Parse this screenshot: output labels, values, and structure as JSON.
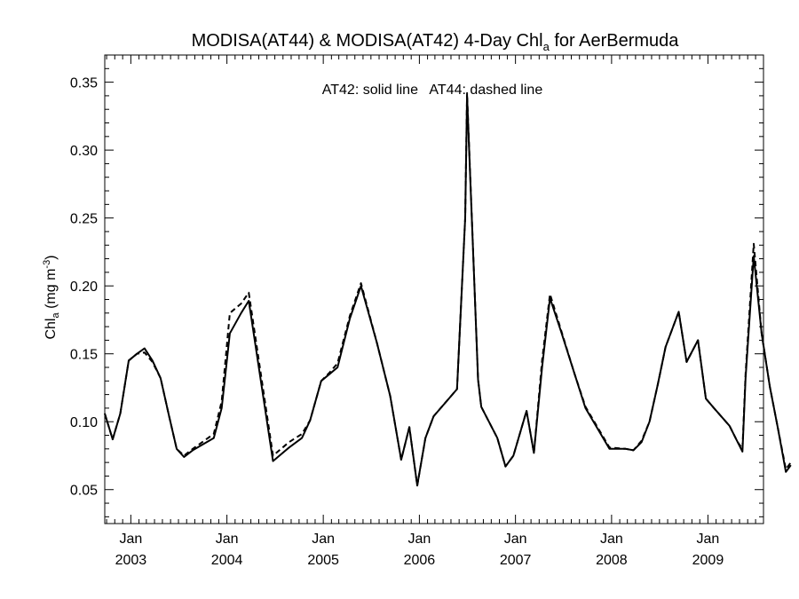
{
  "chart_data": {
    "type": "line",
    "title": "MODISA(AT44) & MODISA(AT42) 4-Day Chl",
    "title_subscript": "a",
    "title_suffix": " for AerBermuda",
    "ylabel": "Chl",
    "ylabel_subscript": "a",
    "ylabel_unit": " (mg m",
    "ylabel_unit_exponent": "-3",
    "ylabel_unit_close": ")",
    "xlabel": "",
    "annotation": "AT42: solid line   AT44: dashed line",
    "ylim": [
      0.025,
      0.37
    ],
    "xlim": [
      "2002-09-24",
      "2009-07-31"
    ],
    "grid": false,
    "y_ticks": [
      0.05,
      0.1,
      0.15,
      0.2,
      0.25,
      0.3,
      0.35
    ],
    "y_tick_labels": [
      "0.05",
      "0.10",
      "0.15",
      "0.20",
      "0.25",
      "0.30",
      "0.35"
    ],
    "x_ticks": [
      {
        "date": "2003-01-01",
        "month": "Jan",
        "year": "2003"
      },
      {
        "date": "2004-01-01",
        "month": "Jan",
        "year": "2004"
      },
      {
        "date": "2005-01-01",
        "month": "Jan",
        "year": "2005"
      },
      {
        "date": "2006-01-01",
        "month": "Jan",
        "year": "2006"
      },
      {
        "date": "2007-01-01",
        "month": "Jan",
        "year": "2007"
      },
      {
        "date": "2008-01-01",
        "month": "Jan",
        "year": "2008"
      },
      {
        "date": "2009-01-01",
        "month": "Jan",
        "year": "2009"
      }
    ],
    "series": [
      {
        "name": "AT42",
        "style": "solid",
        "color": "#000000",
        "points": [
          [
            "2002-09-24",
            0.106
          ],
          [
            "2002-10-24",
            0.087
          ],
          [
            "2002-11-22",
            0.106
          ],
          [
            "2002-12-24",
            0.145
          ],
          [
            "2003-01-24",
            0.15
          ],
          [
            "2003-02-22",
            0.154
          ],
          [
            "2003-03-24",
            0.145
          ],
          [
            "2003-04-24",
            0.132
          ],
          [
            "2003-05-24",
            0.106
          ],
          [
            "2003-06-24",
            0.08
          ],
          [
            "2003-07-22",
            0.074
          ],
          [
            "2003-08-24",
            0.079
          ],
          [
            "2003-11-12",
            0.088
          ],
          [
            "2003-12-12",
            0.11
          ],
          [
            "2004-01-12",
            0.165
          ],
          [
            "2004-02-24",
            0.18
          ],
          [
            "2004-03-24",
            0.189
          ],
          [
            "2004-06-24",
            0.071
          ],
          [
            "2004-08-24",
            0.081
          ],
          [
            "2004-10-12",
            0.088
          ],
          [
            "2004-11-12",
            0.101
          ],
          [
            "2004-12-24",
            0.13
          ],
          [
            "2005-01-24",
            0.135
          ],
          [
            "2005-02-24",
            0.14
          ],
          [
            "2005-04-12",
            0.176
          ],
          [
            "2005-05-24",
            0.2
          ],
          [
            "2005-07-24",
            0.158
          ],
          [
            "2005-09-12",
            0.119
          ],
          [
            "2005-10-24",
            0.072
          ],
          [
            "2005-11-24",
            0.096
          ],
          [
            "2005-12-24",
            0.053
          ],
          [
            "2006-01-24",
            0.088
          ],
          [
            "2006-02-24",
            0.104
          ],
          [
            "2006-05-24",
            0.124
          ],
          [
            "2006-06-24",
            0.25
          ],
          [
            "2006-07-01",
            0.34
          ],
          [
            "2006-08-12",
            0.131
          ],
          [
            "2006-08-24",
            0.111
          ],
          [
            "2006-10-24",
            0.088
          ],
          [
            "2006-11-24",
            0.067
          ],
          [
            "2006-12-24",
            0.075
          ],
          [
            "2007-02-12",
            0.108
          ],
          [
            "2007-03-12",
            0.077
          ],
          [
            "2007-04-12",
            0.14
          ],
          [
            "2007-05-12",
            0.191
          ],
          [
            "2007-06-24",
            0.166
          ],
          [
            "2007-08-12",
            0.136
          ],
          [
            "2007-09-24",
            0.11
          ],
          [
            "2007-12-24",
            0.08
          ],
          [
            "2008-02-24",
            0.08
          ],
          [
            "2008-03-24",
            0.079
          ],
          [
            "2008-04-24",
            0.085
          ],
          [
            "2008-05-24",
            0.1
          ],
          [
            "2008-06-24",
            0.127
          ],
          [
            "2008-07-24",
            0.155
          ],
          [
            "2008-09-12",
            0.181
          ],
          [
            "2008-10-12",
            0.144
          ],
          [
            "2008-11-24",
            0.16
          ],
          [
            "2008-12-24",
            0.117
          ],
          [
            "2009-01-24",
            0.11
          ],
          [
            "2009-03-24",
            0.097
          ],
          [
            "2009-04-24",
            0.085
          ],
          [
            "2009-05-12",
            0.078
          ],
          [
            "2009-05-24",
            0.132
          ],
          [
            "2009-06-24",
            0.222
          ],
          [
            "2009-07-24",
            0.165
          ],
          [
            "2009-08-24",
            0.126
          ],
          [
            "2009-09-24",
            0.095
          ],
          [
            "2009-10-24",
            0.063
          ],
          [
            "2009-11-12",
            0.068
          ]
        ]
      },
      {
        "name": "AT44",
        "style": "dashed",
        "color": "#000000",
        "points": [
          [
            "2002-09-24",
            0.106
          ],
          [
            "2002-10-24",
            0.087
          ],
          [
            "2002-11-22",
            0.106
          ],
          [
            "2002-12-24",
            0.145
          ],
          [
            "2003-01-24",
            0.15
          ],
          [
            "2003-02-22",
            0.151
          ],
          [
            "2003-03-24",
            0.144
          ],
          [
            "2003-04-24",
            0.132
          ],
          [
            "2003-05-24",
            0.106
          ],
          [
            "2003-06-24",
            0.08
          ],
          [
            "2003-07-22",
            0.075
          ],
          [
            "2003-08-24",
            0.08
          ],
          [
            "2003-11-12",
            0.091
          ],
          [
            "2003-12-12",
            0.115
          ],
          [
            "2004-01-12",
            0.18
          ],
          [
            "2004-02-24",
            0.187
          ],
          [
            "2004-03-24",
            0.195
          ],
          [
            "2004-06-24",
            0.075
          ],
          [
            "2004-08-24",
            0.085
          ],
          [
            "2004-10-12",
            0.091
          ],
          [
            "2004-11-12",
            0.101
          ],
          [
            "2004-12-24",
            0.13
          ],
          [
            "2005-01-24",
            0.136
          ],
          [
            "2005-02-24",
            0.143
          ],
          [
            "2005-04-12",
            0.178
          ],
          [
            "2005-05-24",
            0.202
          ],
          [
            "2005-07-24",
            0.158
          ],
          [
            "2005-09-12",
            0.119
          ],
          [
            "2005-10-24",
            0.072
          ],
          [
            "2005-11-24",
            0.096
          ],
          [
            "2005-12-24",
            0.053
          ],
          [
            "2006-01-24",
            0.088
          ],
          [
            "2006-02-24",
            0.104
          ],
          [
            "2006-05-24",
            0.124
          ],
          [
            "2006-06-24",
            0.25
          ],
          [
            "2006-07-01",
            0.342
          ],
          [
            "2006-08-12",
            0.131
          ],
          [
            "2006-08-24",
            0.111
          ],
          [
            "2006-10-24",
            0.088
          ],
          [
            "2006-11-24",
            0.067
          ],
          [
            "2006-12-24",
            0.075
          ],
          [
            "2007-02-12",
            0.108
          ],
          [
            "2007-03-12",
            0.077
          ],
          [
            "2007-04-12",
            0.145
          ],
          [
            "2007-05-12",
            0.194
          ],
          [
            "2007-06-24",
            0.167
          ],
          [
            "2007-08-12",
            0.136
          ],
          [
            "2007-09-24",
            0.111
          ],
          [
            "2007-12-24",
            0.081
          ],
          [
            "2008-02-24",
            0.08
          ],
          [
            "2008-03-24",
            0.079
          ],
          [
            "2008-04-24",
            0.086
          ],
          [
            "2008-05-24",
            0.1
          ],
          [
            "2008-06-24",
            0.127
          ],
          [
            "2008-07-24",
            0.155
          ],
          [
            "2008-09-12",
            0.181
          ],
          [
            "2008-10-12",
            0.144
          ],
          [
            "2008-11-24",
            0.16
          ],
          [
            "2008-12-24",
            0.117
          ],
          [
            "2009-01-24",
            0.11
          ],
          [
            "2009-03-24",
            0.097
          ],
          [
            "2009-04-24",
            0.085
          ],
          [
            "2009-05-12",
            0.08
          ],
          [
            "2009-05-24",
            0.135
          ],
          [
            "2009-06-24",
            0.231
          ],
          [
            "2009-07-24",
            0.165
          ],
          [
            "2009-08-24",
            0.126
          ],
          [
            "2009-09-24",
            0.095
          ],
          [
            "2009-10-24",
            0.065
          ],
          [
            "2009-11-12",
            0.07
          ]
        ]
      }
    ]
  }
}
